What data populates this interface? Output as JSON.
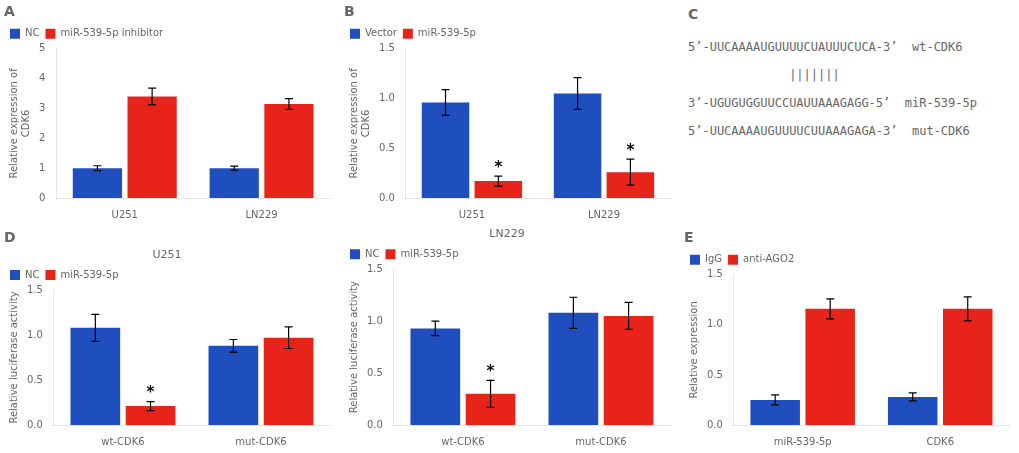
{
  "chart_data": [
    {
      "type": "bar",
      "title": "A",
      "categories": [
        "U251",
        "LN229"
      ],
      "series": [
        {
          "name": "NC",
          "color": "#1F4FBF",
          "values": [
            1.0,
            1.0
          ],
          "errors": [
            0.08,
            0.07
          ]
        },
        {
          "name": "miR-539-5p inhibitor",
          "color": "#E8241A",
          "values": [
            3.4,
            3.15
          ],
          "errors": [
            0.28,
            0.18
          ]
        }
      ],
      "ylabel": "Relative expression of\nCDK6",
      "ylim": [
        0,
        5
      ],
      "yticks": [
        0,
        1,
        2,
        3,
        4,
        5
      ],
      "legend": "upper left",
      "grid": false
    },
    {
      "type": "bar",
      "title": "B",
      "categories": [
        "U251",
        "LN229"
      ],
      "series": [
        {
          "name": "Vector",
          "color": "#1F4FBF",
          "values": [
            0.96,
            1.05
          ],
          "errors": [
            0.13,
            0.16
          ]
        },
        {
          "name": "miR-539-5p",
          "color": "#E8241A",
          "values": [
            0.17,
            0.26
          ],
          "errors": [
            0.05,
            0.13
          ]
        }
      ],
      "ylabel": "Relative expression of\nCDK6",
      "ylim": [
        0,
        1.5
      ],
      "yticks": [
        {
          "value": 0,
          "label": "0.0"
        },
        0.5,
        {
          "value": 1.0,
          "label": "1.0"
        },
        1.5
      ],
      "legend": "upper left",
      "grid": false,
      "annotations": [
        {
          "text": "*",
          "category": "U251",
          "series": "miR-539-5p"
        },
        {
          "text": "*",
          "category": "LN229",
          "series": "miR-539-5p"
        }
      ]
    },
    {
      "type": "text",
      "title": "C",
      "annotations": [
        "5’-UUCAAAAUGUUUUCUAUUUCUCA-3’  wt-CDK6",
        "              |||||||",
        "3’-UGUGUGGUUCCUAUUAAAGAGG-5’  miR-539-5p",
        "5’-UUCAAAAUGUUUUCUUAAAGAGA-3’  mut-CDK6"
      ]
    },
    {
      "type": "bar",
      "title": "D",
      "subtitle": "U251",
      "categories": [
        "wt-CDK6",
        "mut-CDK6"
      ],
      "series": [
        {
          "name": "NC",
          "color": "#1F4FBF",
          "values": [
            1.08,
            0.88
          ],
          "errors": [
            0.15,
            0.07
          ]
        },
        {
          "name": "miR-539-5p",
          "color": "#E8241A",
          "values": [
            0.21,
            0.97
          ],
          "errors": [
            0.05,
            0.12
          ]
        }
      ],
      "ylabel": "Relative luciferase activity",
      "ylim": [
        0,
        1.5
      ],
      "yticks": [
        {
          "value": 0,
          "label": "0.0"
        },
        0.5,
        {
          "value": 1.0,
          "label": "1.0"
        },
        1.5
      ],
      "legend": "upper left",
      "grid": false,
      "annotations": [
        {
          "text": "*",
          "category": "wt-CDK6",
          "series": "miR-539-5p"
        }
      ]
    },
    {
      "type": "bar",
      "subtitle": "LN229",
      "categories": [
        "wt-CDK6",
        "mut-CDK6"
      ],
      "series": [
        {
          "name": "NC",
          "color": "#1F4FBF",
          "values": [
            0.93,
            1.08
          ],
          "errors": [
            0.07,
            0.15
          ]
        },
        {
          "name": "miR-539-5p",
          "color": "#E8241A",
          "values": [
            0.3,
            1.05
          ],
          "errors": [
            0.13,
            0.13
          ]
        }
      ],
      "ylabel": "Relative luciferase activity",
      "ylim": [
        0,
        1.5
      ],
      "yticks": [
        {
          "value": 0,
          "label": "0.0"
        },
        0.5,
        {
          "value": 1.0,
          "label": "1.0"
        },
        1.5
      ],
      "legend": "upper left",
      "grid": false,
      "annotations": [
        {
          "text": "*",
          "category": "wt-CDK6",
          "series": "miR-539-5p"
        }
      ]
    },
    {
      "type": "bar",
      "title": "E",
      "categories": [
        "miR-539-5p",
        "CDK6"
      ],
      "series": [
        {
          "name": "IgG",
          "color": "#1F4FBF",
          "values": [
            0.25,
            0.28
          ],
          "errors": [
            0.05,
            0.04
          ]
        },
        {
          "name": "anti-AGO2",
          "color": "#E8241A",
          "values": [
            1.16,
            1.16
          ],
          "errors": [
            0.1,
            0.12
          ]
        }
      ],
      "ylabel": "Relative expression",
      "ylim": [
        0,
        1.5
      ],
      "yticks": [
        {
          "value": 0,
          "label": "0.0"
        },
        0.5,
        {
          "value": 1.0,
          "label": "1.0"
        },
        1.5
      ],
      "legend": "upper left",
      "grid": false
    }
  ]
}
